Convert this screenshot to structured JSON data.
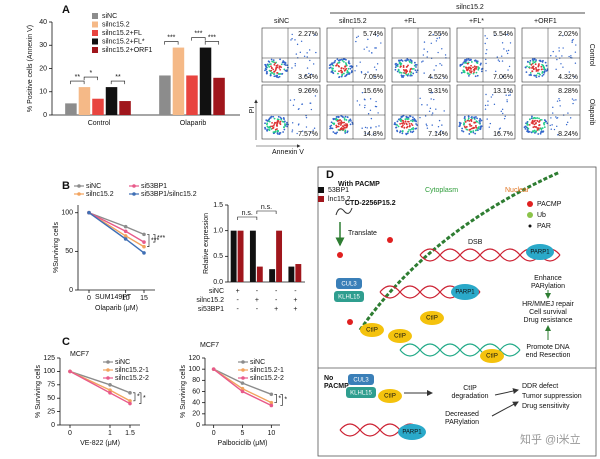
{
  "panel_labels": [
    "A",
    "B",
    "C",
    "D"
  ],
  "chart_data": [
    {
      "type": "bar",
      "ylabel": "% Positive cells (Annexin V)",
      "categories": [
        "Control",
        "Olaparib"
      ],
      "series": [
        {
          "name": "siNC",
          "color": "#8c8c8c",
          "values": [
            5,
            17
          ]
        },
        {
          "name": "silnc15.2",
          "color": "#f5b987",
          "values": [
            12,
            29
          ]
        },
        {
          "name": "silnc15.2+FL",
          "color": "#e8443f",
          "values": [
            7,
            17
          ]
        },
        {
          "name": "silnc15.2+FL*",
          "color": "#111111",
          "values": [
            12,
            29
          ]
        },
        {
          "name": "silnc15.2+ORF1",
          "color": "#a0161c",
          "values": [
            6,
            16
          ]
        }
      ],
      "ylim": [
        0,
        40
      ],
      "yticks": [
        0,
        10,
        20,
        30,
        40
      ],
      "annotations": [
        "**",
        "*",
        "**",
        "***",
        "***",
        "***"
      ]
    },
    {
      "type": "line",
      "subtitle": "SUM149PT",
      "xlabel": "Olaparib (μM)",
      "ylabel": "%Surviving cells",
      "x": [
        0,
        10,
        15
      ],
      "xlim": [
        -3,
        18
      ],
      "xticks": [
        0,
        10,
        15
      ],
      "ylim": [
        0,
        110
      ],
      "yticks": [
        0,
        50,
        100
      ],
      "series": [
        {
          "name": "siNC",
          "color": "#8c8c8c",
          "values": [
            100,
            82,
            72
          ]
        },
        {
          "name": "silnc15.2",
          "color": "#f2a35e",
          "values": [
            100,
            70,
            56
          ]
        },
        {
          "name": "si53BP1",
          "color": "#e85a8a",
          "values": [
            100,
            76,
            62
          ]
        },
        {
          "name": "si53BP1/silnc15.2",
          "color": "#3f6fb5",
          "values": [
            100,
            66,
            48
          ]
        }
      ],
      "annotations": [
        "***",
        "***"
      ]
    },
    {
      "type": "bar",
      "ylabel": "Relative expression",
      "series": [
        {
          "name": "53BP1",
          "color": "#111111",
          "values": [
            1.0,
            1.0,
            0.25,
            0.3
          ]
        },
        {
          "name": "lnc15.2",
          "color": "#a0161c",
          "values": [
            1.0,
            0.3,
            1.0,
            0.35
          ]
        }
      ],
      "ylim": [
        0,
        1.5
      ],
      "yticks": [
        {
          "value": 0,
          "label": "0.0"
        },
        {
          "value": 0.5,
          "label": "0.5"
        },
        {
          "value": 1,
          "label": "1.0"
        },
        {
          "value": 1.5,
          "label": "1.5"
        }
      ],
      "annotations": [
        "n.s.",
        "n.s."
      ],
      "table": [
        {
          "label": "siNC",
          "values": [
            "+",
            "-",
            "-",
            "-"
          ]
        },
        {
          "label": "silnc15.2",
          "values": [
            "-",
            "+",
            "-",
            "+"
          ]
        },
        {
          "label": "si53BP1",
          "values": [
            "-",
            "-",
            "+",
            "+"
          ]
        }
      ]
    },
    {
      "type": "line",
      "subtitle": "MCF7",
      "xlabel": "VE-822 (μM)",
      "ylabel": "% Surviving cells",
      "x": [
        0,
        1,
        1.5
      ],
      "xlim": [
        -0.25,
        1.75
      ],
      "xticks": [
        0,
        1,
        1.5
      ],
      "ylim": [
        0,
        125
      ],
      "yticks": [
        0,
        25,
        50,
        75,
        100,
        125
      ],
      "series": [
        {
          "name": "siNC",
          "color": "#8c8c8c",
          "values": [
            100,
            75,
            60
          ]
        },
        {
          "name": "silnc15.2-1",
          "color": "#f2a35e",
          "values": [
            100,
            65,
            45
          ]
        },
        {
          "name": "silnc15.2-2",
          "color": "#e85a8a",
          "values": [
            100,
            60,
            40
          ]
        }
      ],
      "annotations": [
        "*",
        "*"
      ]
    },
    {
      "type": "line",
      "subtitle": "MCF7",
      "xlabel": "Palbociclib (μM)",
      "ylabel": "% Surviving cells",
      "x": [
        0,
        5,
        10
      ],
      "xlim": [
        -1.5,
        11.5
      ],
      "xticks": [
        0,
        5,
        10
      ],
      "ylim": [
        0,
        120
      ],
      "yticks": [
        0,
        20,
        40,
        60,
        80,
        100,
        120
      ],
      "series": [
        {
          "name": "siNC",
          "color": "#8c8c8c",
          "values": [
            100,
            75,
            55
          ]
        },
        {
          "name": "silnc15.2-1",
          "color": "#f2a35e",
          "values": [
            100,
            65,
            40
          ]
        },
        {
          "name": "silnc15.2-2",
          "color": "#e85a8a",
          "values": [
            100,
            60,
            35
          ]
        }
      ],
      "annotations": [
        "*",
        "*"
      ]
    }
  ],
  "flow": {
    "group_label": "silnc15.2",
    "columns": [
      "siNC",
      "silnc15.2",
      "+FL",
      "+FL*",
      "+ORF1"
    ],
    "rows": [
      "Control",
      "Olaparib"
    ],
    "xlabel": "Annexin V",
    "ylabel": "PI",
    "quadrants": [
      [
        [
          "2.27%",
          "3.64%"
        ],
        [
          "5.74%",
          "7.05%"
        ],
        [
          "2.55%",
          "4.52%"
        ],
        [
          "5.54%",
          "7.06%"
        ],
        [
          "2.02%",
          "4.32%"
        ]
      ],
      [
        [
          "9.26%",
          "7.57%"
        ],
        [
          "15.6%",
          "14.8%"
        ],
        [
          "9.31%",
          "7.14%"
        ],
        [
          "13.1%",
          "16.7%"
        ],
        [
          "8.28%",
          "8.24%"
        ]
      ]
    ]
  },
  "diagram": {
    "with_title": "With PACMP",
    "cytoplasm": "Cytoplasm",
    "nuclear": "Nuclear",
    "gene": "CTD-2256P15.2",
    "translate": "Translate",
    "dsb": "DSB",
    "legend": [
      "PACMP",
      "Ub",
      "PAR"
    ],
    "parp1": "PARP1",
    "cul3": "CUL3",
    "klhl15": "KLHL15",
    "ctip": "CtIP",
    "outcomes": [
      "Enhance",
      "PARylation",
      "HR/MMEJ repair",
      "Cell survival",
      "Drug resistance",
      "Promote DNA",
      "end Resection"
    ],
    "no_title": [
      "No",
      "PACMP"
    ],
    "degradation": [
      "CtIP",
      "degradation"
    ],
    "decreased": [
      "Decreased",
      "PARylation"
    ],
    "no_outcomes": [
      "DDR defect",
      "Tumor suppression",
      "Drug sensitivity"
    ]
  },
  "watermark": "知乎 @i米立"
}
